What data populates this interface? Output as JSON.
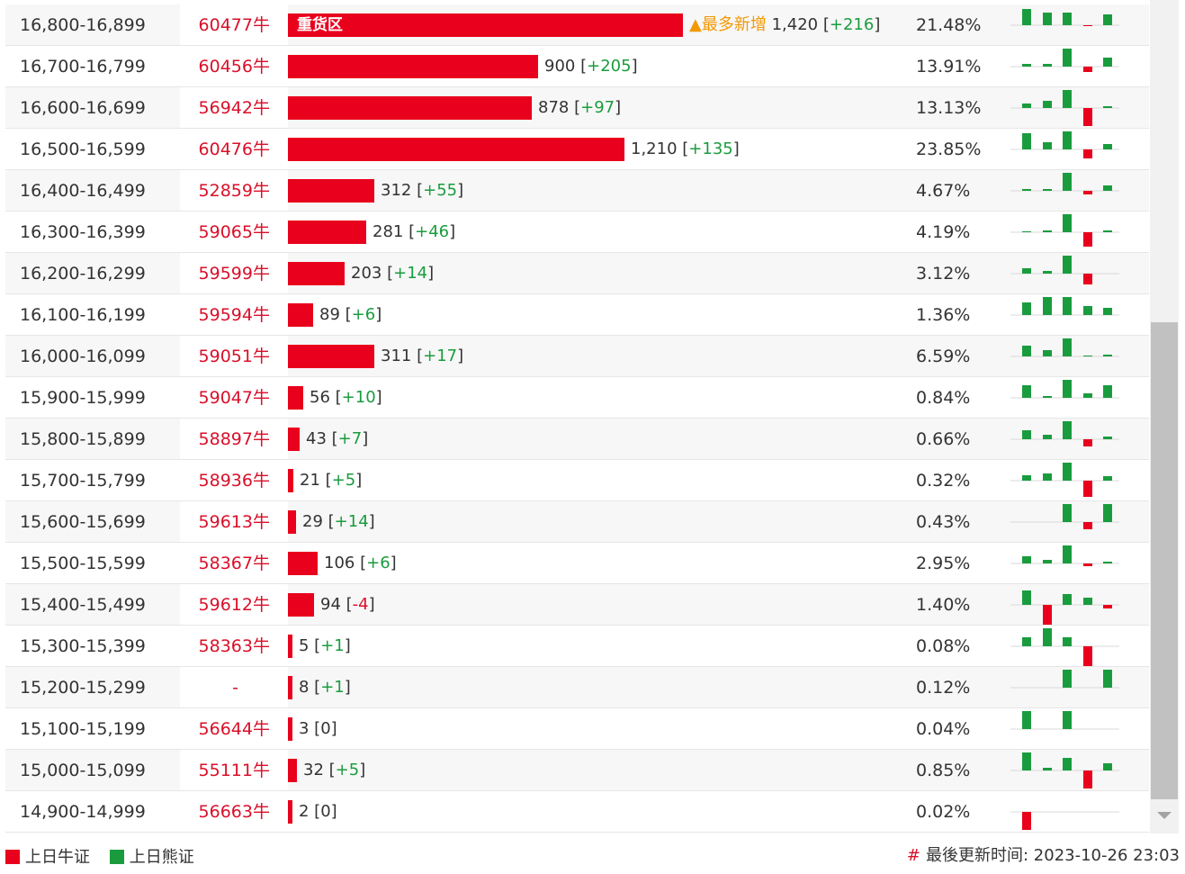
{
  "colors": {
    "bull": "#e8001c",
    "bear": "#1a9c3e",
    "most_new": "#f39800"
  },
  "rows": [
    {
      "range": "16,800-16,899",
      "code": "60477牛",
      "value": 1420,
      "count": "1,420",
      "chg": "+216",
      "pct": "21.48%",
      "heavy": "重货区",
      "most": "▲最多新增",
      "spark": [
        -18,
        -14,
        -14,
        1,
        -12
      ]
    },
    {
      "range": "16,700-16,799",
      "code": "60456牛",
      "value": 900,
      "count": "900",
      "chg": "+205",
      "pct": "13.91%",
      "spark": [
        -3,
        -3,
        -20,
        6,
        -10
      ]
    },
    {
      "range": "16,600-16,699",
      "code": "56942牛",
      "value": 878,
      "count": "878",
      "chg": "+97",
      "pct": "13.13%",
      "spark": [
        -5,
        -8,
        -20,
        20,
        -2
      ]
    },
    {
      "range": "16,500-16,599",
      "code": "60476牛",
      "value": 1210,
      "count": "1,210",
      "chg": "+135",
      "pct": "23.85%",
      "spark": [
        -18,
        -8,
        -20,
        10,
        -6
      ]
    },
    {
      "range": "16,400-16,499",
      "code": "52859牛",
      "value": 312,
      "count": "312",
      "chg": "+55",
      "pct": "4.67%",
      "spark": [
        -2,
        -2,
        -20,
        4,
        -6
      ]
    },
    {
      "range": "16,300-16,399",
      "code": "59065牛",
      "value": 281,
      "count": "281",
      "chg": "+46",
      "pct": "4.19%",
      "spark": [
        -1,
        -2,
        -20,
        16,
        -2
      ]
    },
    {
      "range": "16,200-16,299",
      "code": "59599牛",
      "value": 203,
      "count": "203",
      "chg": "+14",
      "pct": "3.12%",
      "spark": [
        -6,
        -3,
        -20,
        12,
        0
      ]
    },
    {
      "range": "16,100-16,199",
      "code": "59594牛",
      "value": 89,
      "count": "89",
      "chg": "+6",
      "pct": "1.36%",
      "spark": [
        -14,
        -20,
        -20,
        -10,
        -8
      ]
    },
    {
      "range": "16,000-16,099",
      "code": "59051牛",
      "value": 311,
      "count": "311",
      "chg": "+17",
      "pct": "6.59%",
      "spark": [
        -12,
        -7,
        -20,
        -1,
        -2
      ]
    },
    {
      "range": "15,900-15,999",
      "code": "59047牛",
      "value": 56,
      "count": "56",
      "chg": "+10",
      "pct": "0.84%",
      "spark": [
        -14,
        -2,
        -20,
        -5,
        -14
      ]
    },
    {
      "range": "15,800-15,899",
      "code": "58897牛",
      "value": 43,
      "count": "43",
      "chg": "+7",
      "pct": "0.66%",
      "spark": [
        -10,
        -5,
        -20,
        8,
        -3
      ]
    },
    {
      "range": "15,700-15,799",
      "code": "58936牛",
      "value": 21,
      "count": "21",
      "chg": "+5",
      "pct": "0.32%",
      "spark": [
        -6,
        -8,
        -20,
        18,
        -5
      ]
    },
    {
      "range": "15,600-15,699",
      "code": "59613牛",
      "value": 29,
      "count": "29",
      "chg": "+14",
      "pct": "0.43%",
      "spark": [
        0,
        0,
        -20,
        8,
        -20
      ]
    },
    {
      "range": "15,500-15,599",
      "code": "58367牛",
      "value": 106,
      "count": "106",
      "chg": "+6",
      "pct": "2.95%",
      "spark": [
        -8,
        -4,
        -20,
        3,
        -2
      ]
    },
    {
      "range": "15,400-15,499",
      "code": "59612牛",
      "value": 94,
      "count": "94",
      "chg": "-4",
      "pct": "1.40%",
      "spark": [
        -16,
        22,
        -12,
        -8,
        4
      ]
    },
    {
      "range": "15,300-15,399",
      "code": "58363牛",
      "value": 5,
      "count": "5",
      "chg": "+1",
      "pct": "0.08%",
      "spark": [
        -10,
        -20,
        -10,
        22,
        0
      ]
    },
    {
      "range": "15,200-15,299",
      "code": "-",
      "value": 8,
      "count": "8",
      "chg": "+1",
      "pct": "0.12%",
      "spark": [
        0,
        0,
        -20,
        0,
        -20
      ]
    },
    {
      "range": "15,100-15,199",
      "code": "56644牛",
      "value": 3,
      "count": "3",
      "chg": "0",
      "pct": "0.04%",
      "spark": [
        -20,
        0,
        -20,
        0,
        0
      ]
    },
    {
      "range": "15,000-15,099",
      "code": "55111牛",
      "value": 32,
      "count": "32",
      "chg": "+5",
      "pct": "0.85%",
      "spark": [
        -20,
        -3,
        -14,
        20,
        -8
      ]
    },
    {
      "range": "14,900-14,999",
      "code": "56663牛",
      "value": 2,
      "count": "2",
      "chg": "0",
      "pct": "0.02%",
      "spark": [
        20,
        0,
        0,
        0,
        0
      ]
    }
  ],
  "legend": {
    "bull": "上日牛证",
    "bear": "上日熊证"
  },
  "footer": {
    "hash": "#",
    "updated_label": "最後更新时间:",
    "updated_time": "2023-10-26 23:03"
  }
}
